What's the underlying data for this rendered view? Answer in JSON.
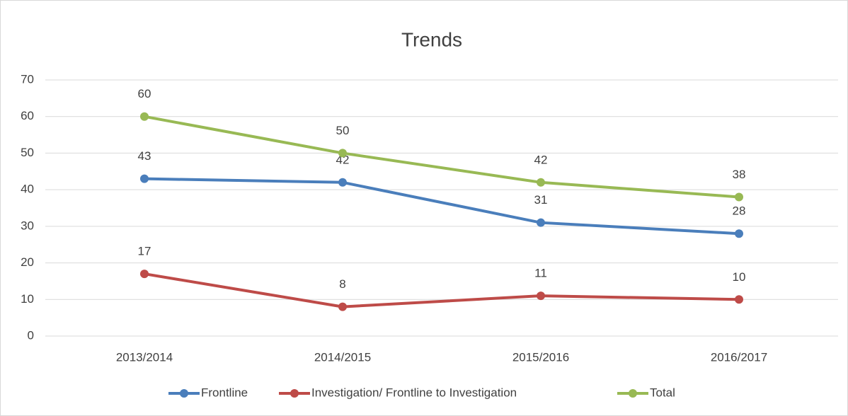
{
  "chart_data": {
    "type": "line",
    "title": "Trends",
    "categories": [
      "2013/2014",
      "2014/2015",
      "2015/2016",
      "2016/2017"
    ],
    "series": [
      {
        "name": "Frontline",
        "color": "#4a7ebb",
        "values": [
          43,
          42,
          31,
          28
        ]
      },
      {
        "name": "Investigation/ Frontline to Investigation",
        "color": "#be4b48",
        "values": [
          17,
          8,
          11,
          10
        ]
      },
      {
        "name": "Total",
        "color": "#98b954",
        "values": [
          60,
          50,
          42,
          38
        ]
      }
    ],
    "ylim": [
      0,
      70
    ],
    "yticks": [
      0,
      10,
      20,
      30,
      40,
      50,
      60,
      70
    ],
    "grid": true,
    "legend": "bottom"
  }
}
